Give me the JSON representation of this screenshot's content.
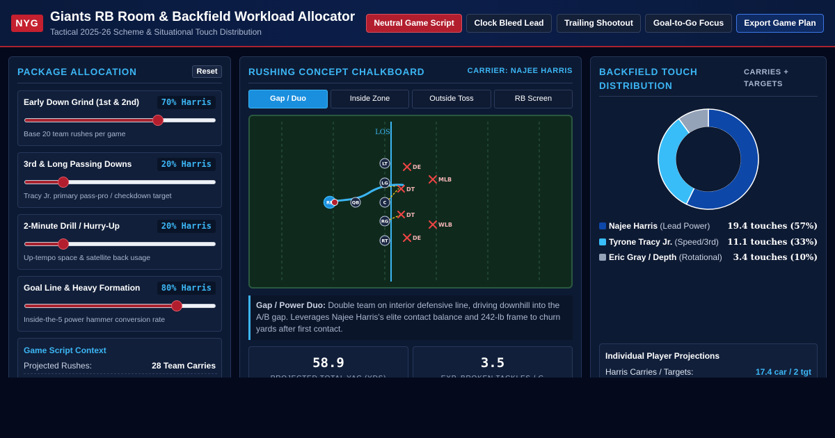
{
  "header": {
    "logo": "NYG",
    "title": "Giants RB Room & Backfield Workload Allocator",
    "subtitle": "Tactical 2025-26 Scheme & Situational Touch Distribution",
    "buttons": [
      "Neutral Game Script",
      "Clock Bleed Lead",
      "Trailing Shootout",
      "Goal-to-Go Focus",
      "Export Game Plan"
    ],
    "active_button": "Neutral Game Script"
  },
  "package_allocation": {
    "title": "PACKAGE ALLOCATION",
    "reset_label": "Reset",
    "packages": [
      {
        "label": "Early Down Grind (1st & 2nd)",
        "pct_text": "70% Harris",
        "value": 70,
        "desc": "Base 20 team rushes per game"
      },
      {
        "label": "3rd & Long Passing Downs",
        "pct_text": "20% Harris",
        "value": 20,
        "desc": "Tracy Jr. primary pass-pro / checkdown target"
      },
      {
        "label": "2-Minute Drill / Hurry-Up",
        "pct_text": "20% Harris",
        "value": 20,
        "desc": "Up-tempo space & satellite back usage"
      },
      {
        "label": "Goal Line & Heavy Formation",
        "pct_text": "80% Harris",
        "value": 80,
        "desc": "Inside-the-5 power hammer conversion rate"
      }
    ],
    "context": {
      "title": "Game Script Context",
      "label": "Projected Rushes:",
      "value": "28 Team Carries"
    }
  },
  "chalkboard": {
    "title": "RUSHING CONCEPT CHALKBOARD",
    "carrier": "CARRIER: NAJEE HARRIS",
    "tabs": [
      "Gap / Duo",
      "Inside Zone",
      "Outside Toss",
      "RB Screen"
    ],
    "active_tab": "Gap / Duo",
    "field": {
      "los_label": "LOS",
      "offense": [
        "LT",
        "LG",
        "C",
        "RG",
        "RT",
        "QB",
        "RB"
      ],
      "defense": [
        "DE",
        "DT",
        "DT",
        "DE",
        "MLB",
        "WLB"
      ]
    },
    "explanation": {
      "bold": "Gap / Power Duo:",
      "text": " Double team on interior defensive line, driving downhill into the A/B gap. Leverages Najee Harris's elite contact balance and 242-lb frame to churn yards after first contact."
    },
    "stats": [
      {
        "value": "58.9",
        "label": "PROJECTED TOTAL YAC (YDS)"
      },
      {
        "value": "3.5",
        "label": "EXP. BROKEN TACKLES / G"
      }
    ]
  },
  "distribution": {
    "title": "BACKFIELD TOUCH DISTRIBUTION",
    "subtitle": "CARRIES + TARGETS",
    "players": [
      {
        "name": "Najee Harris",
        "role": " (Lead Power)",
        "value_text": "19.4 touches (57%)",
        "touches": 19.4,
        "share": 57,
        "color": "#0d47a8"
      },
      {
        "name": "Tyrone Tracy Jr.",
        "role": " (Speed/3rd)",
        "value_text": "11.1 touches (33%)",
        "touches": 11.1,
        "share": 33,
        "color": "#38bdf8"
      },
      {
        "name": "Eric Gray / Depth",
        "role": " (Rotational)",
        "value_text": "3.4 touches (10%)",
        "touches": 3.4,
        "share": 10,
        "color": "#94a3b8"
      }
    ],
    "projections": {
      "title": "Individual Player Projections",
      "label": "Harris Carries / Targets:",
      "value": "17.4 car / 2 tgt"
    }
  }
}
